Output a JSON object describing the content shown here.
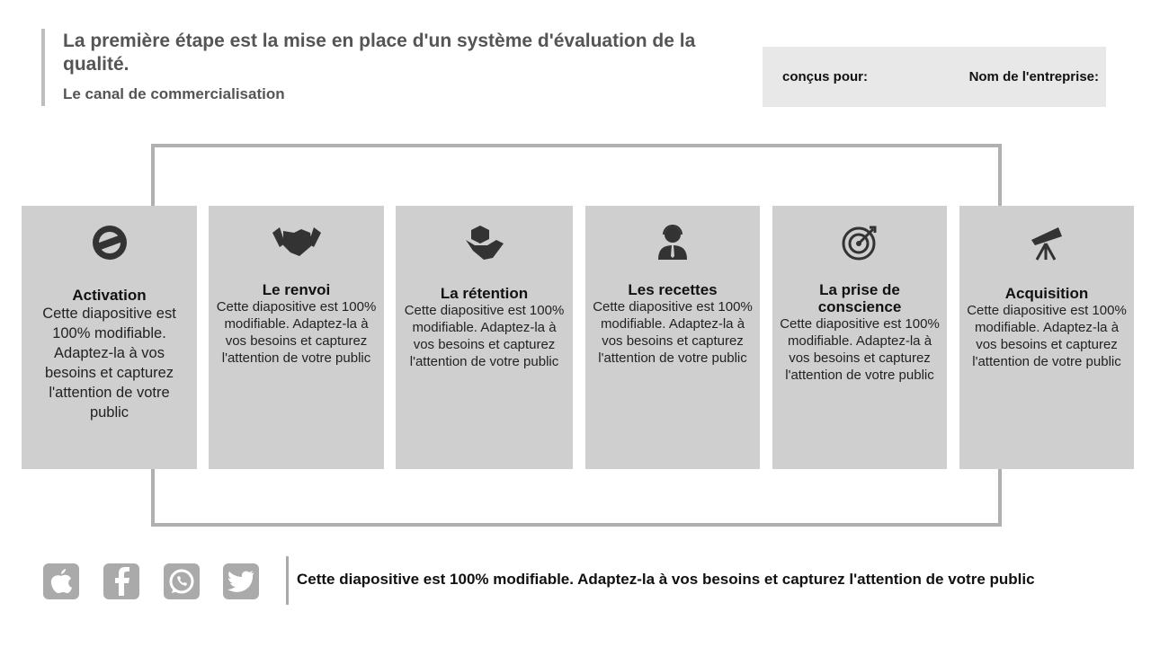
{
  "header": {
    "title": "La première étape est la mise en place d'un système d'évaluation de la qualité.",
    "subtitle": "Le canal de commercialisation"
  },
  "info": {
    "designed_for": "conçus pour:",
    "company": "Nom de l'entreprise:"
  },
  "cards": [
    {
      "title": "Activation",
      "text": "Cette diapositive est 100% modifiable. Adaptez-la à vos besoins et capturez l'attention de votre public",
      "icon": "brand-badge-icon"
    },
    {
      "title": "Le renvoi",
      "text": "Cette diapositive est 100% modifiable. Adaptez-la à vos besoins et capturez l'attention de votre public",
      "icon": "handshake-icon"
    },
    {
      "title": "La rétention",
      "text": "Cette diapositive est 100% modifiable. Adaptez-la à vos besoins et capturez l'attention de votre public",
      "icon": "hand-box-icon"
    },
    {
      "title": "Les recettes",
      "text": "Cette diapositive est 100% modifiable. Adaptez-la à vos besoins et capturez l'attention de votre public",
      "icon": "support-agent-icon"
    },
    {
      "title": "La prise de conscience",
      "text": "Cette diapositive est 100% modifiable. Adaptez-la à vos besoins et capturez l'attention de votre public",
      "icon": "target-icon"
    },
    {
      "title": "Acquisition",
      "text": "Cette diapositive est 100% modifiable. Adaptez-la à vos besoins et capturez l'attention de votre public",
      "icon": "telescope-icon"
    }
  ],
  "social": [
    "apple-icon",
    "facebook-icon",
    "whatsapp-icon",
    "twitter-icon"
  ],
  "footer": {
    "text": "Cette diapositive est 100% modifiable. Adaptez-la à vos besoins et capturez l'attention de votre public"
  },
  "colors": {
    "card": "#cfcfcf",
    "frame": "#b0b0b0",
    "icon": "#333333"
  }
}
